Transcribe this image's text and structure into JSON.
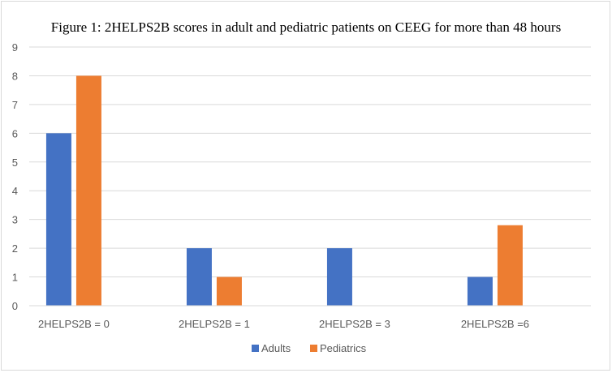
{
  "chart_data": {
    "type": "bar",
    "title": "Figure 1: 2HELPS2B scores in adult and pediatric patients on CEEG for more than 48 hours",
    "categories": [
      "2HELPS2B = 0",
      "2HELPS2B = 1",
      "2HELPS2B = 3",
      "2HELPS2B =6"
    ],
    "series": [
      {
        "name": "Adults",
        "values": [
          6,
          2,
          2,
          1
        ],
        "color": "#4472c4"
      },
      {
        "name": "Pediatrics",
        "values": [
          8,
          1,
          0,
          2.8
        ],
        "color": "#ed7d31"
      }
    ],
    "y_ticks": [
      "0",
      "1",
      "2",
      "3",
      "4",
      "5",
      "6",
      "7",
      "8",
      "9"
    ],
    "ylim": [
      0,
      9
    ],
    "grid": true,
    "legend_position": "bottom"
  }
}
